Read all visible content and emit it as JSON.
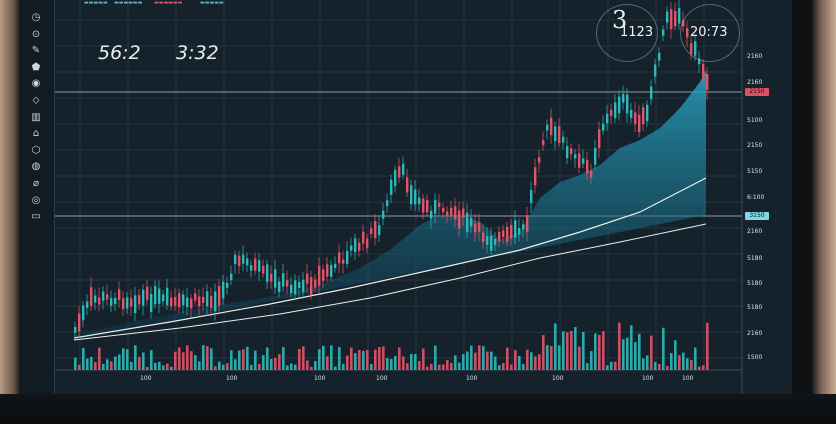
{
  "overlay": {
    "text_left_1": "56:2",
    "text_left_2": "3:32",
    "circle_label_1": "3",
    "circle_label_2": "1123",
    "circle_label_3": "20:73"
  },
  "y_axis_labels": [
    "2160",
    "2160",
    "5100",
    "2150",
    "5150",
    "6:100",
    "2160",
    "5180",
    "5180",
    "5180",
    "2160",
    "1500"
  ],
  "y_tags": [
    {
      "text": "2150",
      "color": "#e0505f"
    },
    {
      "text": "3150",
      "color": "#7fd8e4"
    }
  ],
  "x_axis_labels": [
    "100",
    "100",
    "100",
    "100",
    "100",
    "100",
    "100",
    "100",
    "100"
  ],
  "colors": {
    "up": "#2fb9b8",
    "down": "#e1546a",
    "area": "#1e7f9d",
    "line": "#e8efe8"
  },
  "toolbar_icons": [
    "clock-icon",
    "crosshair-icon",
    "brush-icon",
    "shape-icon",
    "text-icon",
    "measure-icon",
    "zoom-icon",
    "magnet-icon",
    "lock-icon",
    "eye-icon",
    "trash-icon",
    "home-icon",
    "layers-icon"
  ]
}
